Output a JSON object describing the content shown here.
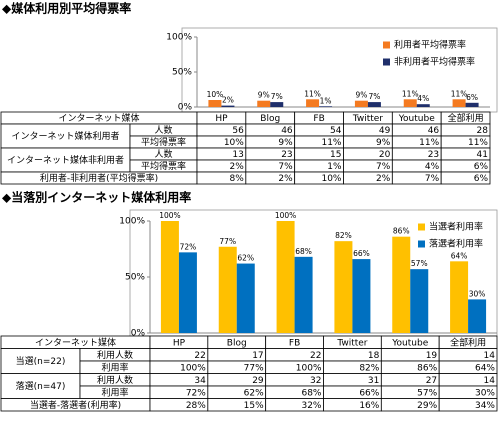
{
  "chart_data": [
    {
      "type": "bar",
      "title": "◆媒体利用別平均得票率",
      "categories": [
        "HP",
        "Blog",
        "FB",
        "Twitter",
        "Youtube",
        "全部利用"
      ],
      "series": [
        {
          "name": "利用者平均得票率",
          "color": "#f47a20",
          "values": [
            10,
            9,
            11,
            9,
            11,
            11
          ],
          "value_labels": [
            "10%",
            "9%",
            "11%",
            "9%",
            "11%",
            "11%"
          ]
        },
        {
          "name": "非利用者平均得票率",
          "color": "#1f2f6b",
          "values": [
            2,
            7,
            1,
            7,
            4,
            6
          ],
          "value_labels": [
            "2%",
            "7%",
            "1%",
            "7%",
            "4%",
            "6%"
          ]
        }
      ],
      "ylim": [
        0,
        100
      ],
      "yticks": [
        {
          "value": 0,
          "label": "0%"
        },
        {
          "value": 50,
          "label": "50%"
        },
        {
          "value": 100,
          "label": "100%"
        }
      ],
      "grid": false,
      "legend": "upper right"
    },
    {
      "type": "bar",
      "title": "◆当落別インターネット媒体利用率",
      "categories": [
        "HP",
        "Blog",
        "FB",
        "Twitter",
        "Youtube",
        "全部利用"
      ],
      "series": [
        {
          "name": "当選者利用率",
          "color": "#ffc000",
          "values": [
            100,
            77,
            100,
            82,
            86,
            64
          ],
          "value_labels": [
            "100%",
            "77%",
            "100%",
            "82%",
            "86%",
            "64%"
          ]
        },
        {
          "name": "落選者利用率",
          "color": "#0070c0",
          "values": [
            72,
            62,
            68,
            66,
            57,
            30
          ],
          "value_labels": [
            "72%",
            "62%",
            "68%",
            "66%",
            "57%",
            "30%"
          ]
        }
      ],
      "ylim": [
        0,
        100
      ],
      "yticks": [
        {
          "value": 0,
          "label": "0%"
        },
        {
          "value": 50,
          "label": "50%"
        },
        {
          "value": 100,
          "label": "100%"
        }
      ],
      "grid": false,
      "legend": "upper right"
    }
  ],
  "tables": [
    {
      "header": [
        "インターネット媒体",
        "HP",
        "Blog",
        "FB",
        "Twitter",
        "Youtube",
        "全部利用"
      ],
      "groups": [
        {
          "name": "インターネット媒体利用者",
          "rows": [
            {
              "label": "人数",
              "cells": [
                56,
                46,
                54,
                49,
                46,
                28
              ]
            },
            {
              "label": "平均得票率",
              "cells": [
                "10%",
                "9%",
                "11%",
                "9%",
                "11%",
                "11%"
              ]
            }
          ]
        },
        {
          "name": "インターネット媒体非利用者",
          "rows": [
            {
              "label": "人数",
              "cells": [
                13,
                23,
                15,
                20,
                23,
                41
              ]
            },
            {
              "label": "平均得票率",
              "cells": [
                "2%",
                "7%",
                "1%",
                "7%",
                "4%",
                "6%"
              ]
            }
          ]
        }
      ],
      "footer": {
        "label": "利用者-非利用者(平均得票率)",
        "cells": [
          "8%",
          "2%",
          "10%",
          "2%",
          "7%",
          "6%"
        ]
      }
    },
    {
      "header": [
        "インターネット媒体",
        "HP",
        "Blog",
        "FB",
        "Twitter",
        "Youtube",
        "全部利用"
      ],
      "groups": [
        {
          "name": "当選(n=22)",
          "rows": [
            {
              "label": "利用人数",
              "cells": [
                22,
                17,
                22,
                18,
                19,
                14
              ]
            },
            {
              "label": "利用率",
              "cells": [
                "100%",
                "77%",
                "100%",
                "82%",
                "86%",
                "64%"
              ]
            }
          ]
        },
        {
          "name": "落選(n=47)",
          "rows": [
            {
              "label": "利用人数",
              "cells": [
                34,
                29,
                32,
                31,
                27,
                14
              ]
            },
            {
              "label": "利用率",
              "cells": [
                "72%",
                "62%",
                "68%",
                "66%",
                "57%",
                "30%"
              ]
            }
          ]
        }
      ],
      "footer": {
        "label": "当選者-落選者(利用率)",
        "cells": [
          "28%",
          "15%",
          "32%",
          "16%",
          "29%",
          "34%"
        ]
      }
    }
  ]
}
